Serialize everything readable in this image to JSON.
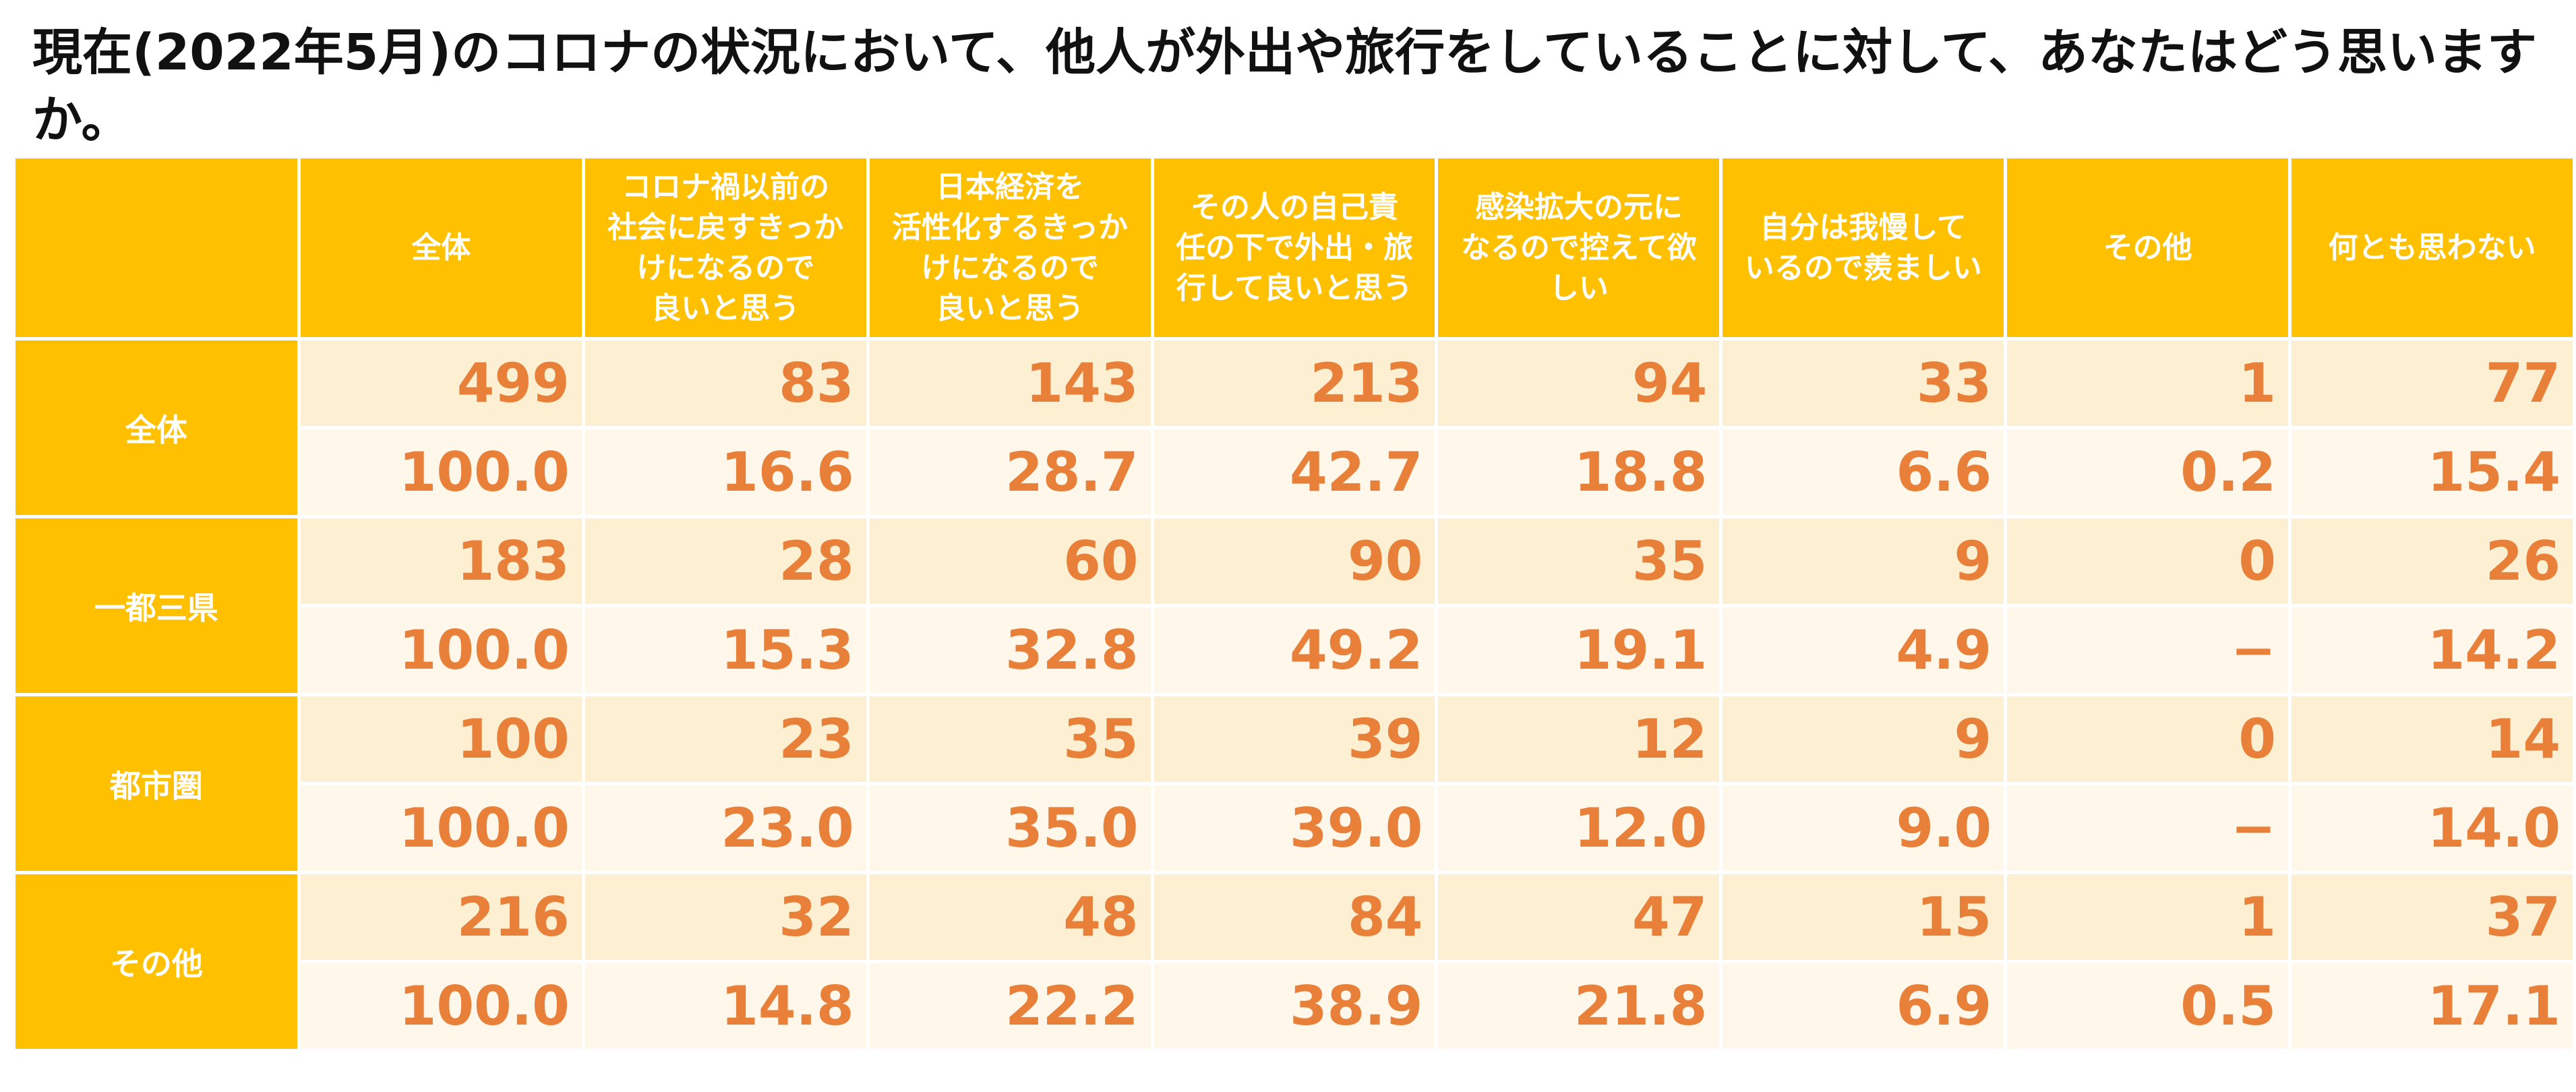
{
  "title": "現在(2022年5月)のコロナの状況において、他人が外出や旅行をしていることに対して、あなたはどう思いますか。",
  "chart_data": {
    "type": "table",
    "title": "現在(2022年5月)のコロナの状況において、他人が外出や旅行をしていることに対して、あなたはどう思いますか。",
    "columns": [
      "全体",
      "コロナ禍以前の\n社会に戻すきっか\nけになるので\n良いと思う",
      "日本経済を\n活性化するきっか\nけになるので\n良いと思う",
      "その人の自己責\n任の下で外出・旅\n行して良いと思う",
      "感染拡大の元に\nなるので控えて欲\nしい",
      "自分は我慢して\nいるので羨ましい",
      "その他",
      "何とも思わない"
    ],
    "groups": [
      {
        "label": "全体",
        "counts": [
          "499",
          "83",
          "143",
          "213",
          "94",
          "33",
          "1",
          "77"
        ],
        "percents": [
          "100.0",
          "16.6",
          "28.7",
          "42.7",
          "18.8",
          "6.6",
          "0.2",
          "15.4"
        ]
      },
      {
        "label": "一都三県",
        "counts": [
          "183",
          "28",
          "60",
          "90",
          "35",
          "9",
          "0",
          "26"
        ],
        "percents": [
          "100.0",
          "15.3",
          "32.8",
          "49.2",
          "19.1",
          "4.9",
          "−",
          "14.2"
        ]
      },
      {
        "label": "都市圏",
        "counts": [
          "100",
          "23",
          "35",
          "39",
          "12",
          "9",
          "0",
          "14"
        ],
        "percents": [
          "100.0",
          "23.0",
          "35.0",
          "39.0",
          "12.0",
          "9.0",
          "−",
          "14.0"
        ]
      },
      {
        "label": "その他",
        "counts": [
          "216",
          "32",
          "48",
          "84",
          "47",
          "15",
          "1",
          "37"
        ],
        "percents": [
          "100.0",
          "14.8",
          "22.2",
          "38.9",
          "21.8",
          "6.9",
          "0.5",
          "17.1"
        ]
      }
    ]
  },
  "colors": {
    "header_bg": "#FFC000",
    "header_text": "#FFFFFF",
    "value_text": "#E8803A",
    "count_row_bg": "#FDF0D2",
    "percent_row_bg": "#FEF7EA"
  }
}
